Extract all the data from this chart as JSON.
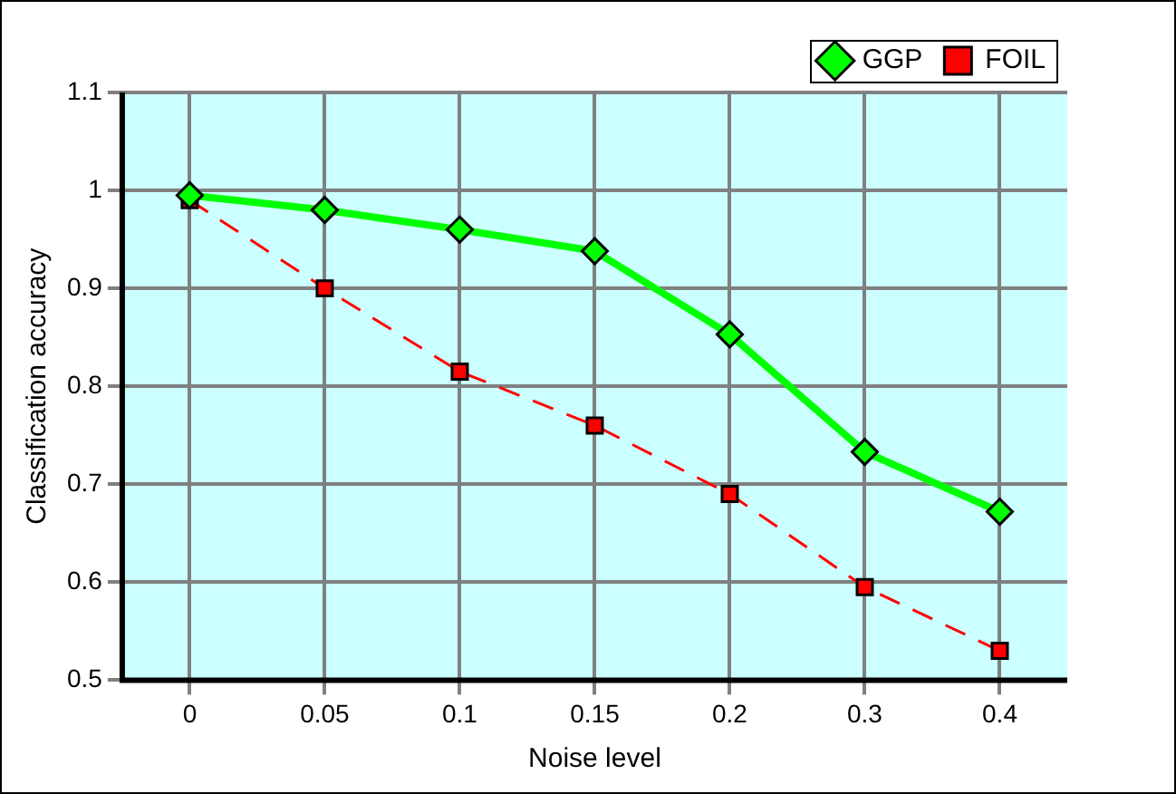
{
  "chart_data": {
    "type": "line",
    "xlabel": "Noise level",
    "ylabel": "Classification accuracy",
    "categories": [
      "0",
      "0.05",
      "0.1",
      "0.15",
      "0.2",
      "0.3",
      "0.4"
    ],
    "series": [
      {
        "name": "FOIL",
        "color": "#ff0000",
        "marker": "square",
        "line_style": "dashed",
        "values": [
          0.99,
          0.9,
          0.815,
          0.76,
          0.69,
          0.595,
          0.53
        ]
      },
      {
        "name": "GGP",
        "color": "#00ff00",
        "marker": "diamond",
        "line_style": "solid",
        "values": [
          0.995,
          0.98,
          0.96,
          0.938,
          0.853,
          0.733,
          0.672
        ]
      }
    ],
    "ylim": [
      0.5,
      1.1
    ],
    "yticks": [
      0.5,
      0.6,
      0.7,
      0.8,
      0.9,
      1,
      1.1
    ],
    "grid": true,
    "legend": "top right"
  }
}
